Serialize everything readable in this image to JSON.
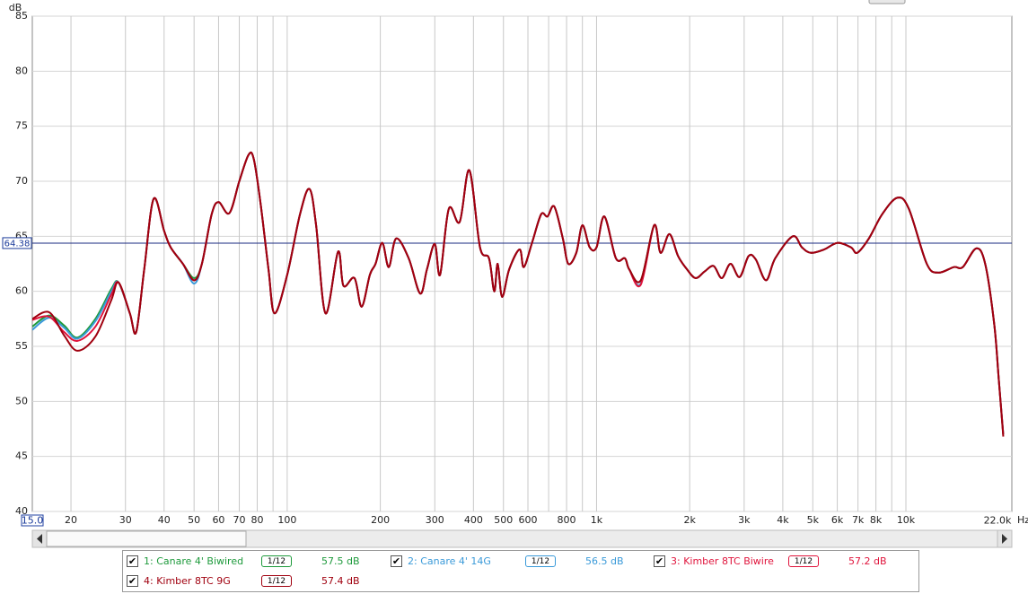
{
  "chart_data": {
    "type": "line",
    "y_label": "dB",
    "x_unit": "Hz",
    "log_x": true,
    "grid": true,
    "xlim": [
      15,
      22000
    ],
    "ylim": [
      40,
      85
    ],
    "yticks": [
      40,
      45,
      50,
      55,
      60,
      65,
      70,
      75,
      80,
      85
    ],
    "xticks": [
      {
        "value": 15,
        "label": "15.0"
      },
      20,
      30,
      40,
      50,
      60,
      70,
      80,
      100,
      200,
      300,
      400,
      500,
      600,
      800,
      {
        "value": 1000,
        "label": "1k"
      },
      {
        "value": 2000,
        "label": "2k"
      },
      {
        "value": 3000,
        "label": "3k"
      },
      {
        "value": 4000,
        "label": "4k"
      },
      {
        "value": 5000,
        "label": "5k"
      },
      {
        "value": 6000,
        "label": "6k"
      },
      {
        "value": 7000,
        "label": "7k"
      },
      {
        "value": 8000,
        "label": "8k"
      },
      {
        "value": 10000,
        "label": "10k"
      },
      {
        "value": 22000,
        "label": "22.0k"
      }
    ],
    "x_minor_grid": [
      90,
      700,
      900,
      9000
    ],
    "marker_line": 64.38,
    "x": [
      15,
      17,
      19,
      21,
      24,
      27,
      28.5,
      31,
      32.5,
      34.5,
      37,
      40,
      42,
      46,
      50,
      53,
      57,
      60,
      65,
      70,
      75,
      78,
      82,
      87,
      91,
      100,
      110,
      118,
      124,
      133,
      146,
      152,
      165,
      174,
      185,
      193,
      203,
      213,
      225,
      247,
      269,
      283,
      300,
      312,
      333,
      361,
      388,
      420,
      449,
      467,
      479,
      495,
      522,
      564,
      582,
      620,
      662,
      694,
      730,
      778,
      810,
      860,
      900,
      950,
      1000,
      1060,
      1155,
      1235,
      1275,
      1390,
      1535,
      1610,
      1720,
      1835,
      1960,
      2090,
      2235,
      2390,
      2540,
      2710,
      2900,
      3100,
      3270,
      3530,
      3780,
      4310,
      4610,
      4930,
      5440,
      6010,
      6640,
      6960,
      7590,
      8380,
      9380,
      10220,
      11680,
      12740,
      14280,
      15270,
      16880,
      18040,
      19300,
      19960,
      20640
    ],
    "series": [
      {
        "name": "1: Canare 4' Biwired",
        "color": "#1e9a3c",
        "smoothing": "1/12",
        "level": {
          "value": 57.5,
          "label": "57.5 dB"
        },
        "values": [
          56.8,
          57.8,
          56.9,
          55.8,
          57.5,
          60.2,
          60.8,
          58,
          56.3,
          62,
          68.4,
          65.5,
          64,
          62.5,
          61.2,
          62.5,
          67,
          68.1,
          67.1,
          70,
          72.4,
          72,
          68,
          62,
          58,
          61.5,
          67,
          69.3,
          66,
          58,
          63.6,
          60.5,
          61.2,
          58.6,
          61.5,
          62.5,
          64.4,
          62.2,
          64.8,
          63,
          59.8,
          62,
          64.3,
          61.5,
          67.5,
          66.3,
          71,
          64,
          63,
          60,
          62.5,
          59.5,
          62,
          63.8,
          62.2,
          64.5,
          67,
          66.8,
          67.7,
          64.8,
          62.5,
          63.5,
          66,
          64,
          64,
          66.8,
          63,
          63,
          62,
          61,
          66,
          63.5,
          65.2,
          63.2,
          62,
          61.2,
          61.8,
          62.3,
          61.2,
          62.5,
          61.3,
          63.2,
          62.9,
          61,
          63,
          65,
          64,
          63.5,
          63.8,
          64.4,
          64,
          63.5,
          64.8,
          67,
          68.5,
          67.5,
          62.5,
          61.7,
          62.2,
          62.2,
          63.9,
          62.5,
          57,
          52,
          47
        ]
      },
      {
        "name": "2: Canare 4' 14G",
        "color": "#3a9ad9",
        "smoothing": "1/12",
        "level": {
          "value": 56.5,
          "label": "56.5 dB"
        },
        "values": [
          56.5,
          57.6,
          56.7,
          55.7,
          57.3,
          60,
          60.8,
          58,
          56.3,
          62,
          68.4,
          65.5,
          64,
          62.5,
          60.7,
          62.5,
          67,
          68.1,
          67.1,
          70,
          72.4,
          72,
          68,
          62,
          58,
          61.5,
          67,
          69.3,
          66,
          58,
          63.6,
          60.5,
          61.2,
          58.6,
          61.5,
          62.5,
          64.4,
          62.2,
          64.8,
          63,
          59.8,
          62,
          64.3,
          61.5,
          67.5,
          66.3,
          71,
          64,
          63,
          60,
          62.5,
          59.5,
          62,
          63.8,
          62.2,
          64.5,
          67,
          66.8,
          67.7,
          64.8,
          62.5,
          63.5,
          66,
          64,
          64,
          66.8,
          63,
          63,
          62,
          60.7,
          66,
          63.5,
          65.2,
          63.2,
          62,
          61.2,
          61.8,
          62.3,
          61.2,
          62.5,
          61.3,
          63.2,
          62.9,
          61,
          63,
          65,
          64,
          63.5,
          63.8,
          64.4,
          64,
          63.5,
          64.8,
          67,
          68.5,
          67.5,
          62.5,
          61.7,
          62.2,
          62.2,
          63.9,
          62.5,
          57,
          52,
          47
        ]
      },
      {
        "name": "3: Kimber 8TC Biwire",
        "color": "#e0143c",
        "smoothing": "1/12",
        "level": {
          "value": 57.2,
          "label": "57.2 dB"
        },
        "values": [
          57.4,
          57.7,
          56.3,
          55.5,
          56.8,
          59.7,
          60.8,
          58,
          56.3,
          62,
          68.4,
          65.5,
          64,
          62.5,
          61,
          62.5,
          67,
          68.1,
          67.1,
          70,
          72.4,
          72,
          68,
          62,
          58,
          61.5,
          67,
          69.3,
          66,
          58,
          63.6,
          60.5,
          61.2,
          58.6,
          61.5,
          62.5,
          64.4,
          62.2,
          64.8,
          63,
          59.8,
          62,
          64.3,
          61.5,
          67.5,
          66.3,
          71,
          64,
          63,
          60,
          62.5,
          59.5,
          62,
          63.8,
          62.2,
          64.5,
          67,
          66.8,
          67.7,
          64.8,
          62.5,
          63.5,
          66,
          64,
          64,
          66.8,
          63,
          63,
          62,
          60.6,
          66,
          63.5,
          65.2,
          63.2,
          62,
          61.2,
          61.8,
          62.3,
          61.2,
          62.5,
          61.3,
          63.2,
          62.9,
          61,
          63,
          65,
          64,
          63.5,
          63.8,
          64.4,
          64,
          63.5,
          64.8,
          67,
          68.5,
          67.5,
          62.5,
          61.7,
          62.2,
          62.2,
          63.9,
          62.5,
          57,
          52,
          47
        ]
      },
      {
        "name": "4: Kimber 8TC 9G",
        "color": "#a0000f",
        "smoothing": "1/12",
        "level": {
          "value": 57.4,
          "label": "57.4 dB"
        },
        "values": [
          57.5,
          58.1,
          56,
          54.6,
          55.9,
          59.2,
          60.8,
          58,
          56.3,
          62,
          68.4,
          65.5,
          64,
          62.5,
          61,
          62.5,
          67,
          68.1,
          67.1,
          70,
          72.4,
          72,
          68,
          62,
          58,
          61.5,
          67,
          69.3,
          66,
          58,
          63.6,
          60.5,
          61.2,
          58.6,
          61.5,
          62.5,
          64.4,
          62.2,
          64.8,
          63,
          59.8,
          62,
          64.3,
          61.5,
          67.5,
          66.3,
          71,
          64,
          63,
          60,
          62.5,
          59.5,
          62,
          63.8,
          62.2,
          64.5,
          67,
          66.8,
          67.7,
          64.8,
          62.5,
          63.5,
          66,
          64,
          64,
          66.8,
          63,
          63,
          62,
          61,
          66,
          63.5,
          65.2,
          63.2,
          62,
          61.2,
          61.8,
          62.3,
          61.2,
          62.5,
          61.3,
          63.2,
          62.9,
          61,
          63,
          65,
          64,
          63.5,
          63.8,
          64.4,
          64,
          63.5,
          64.8,
          67,
          68.5,
          67.5,
          62.5,
          61.7,
          62.2,
          62.2,
          63.9,
          62.5,
          57,
          52,
          46.8
        ]
      }
    ]
  }
}
